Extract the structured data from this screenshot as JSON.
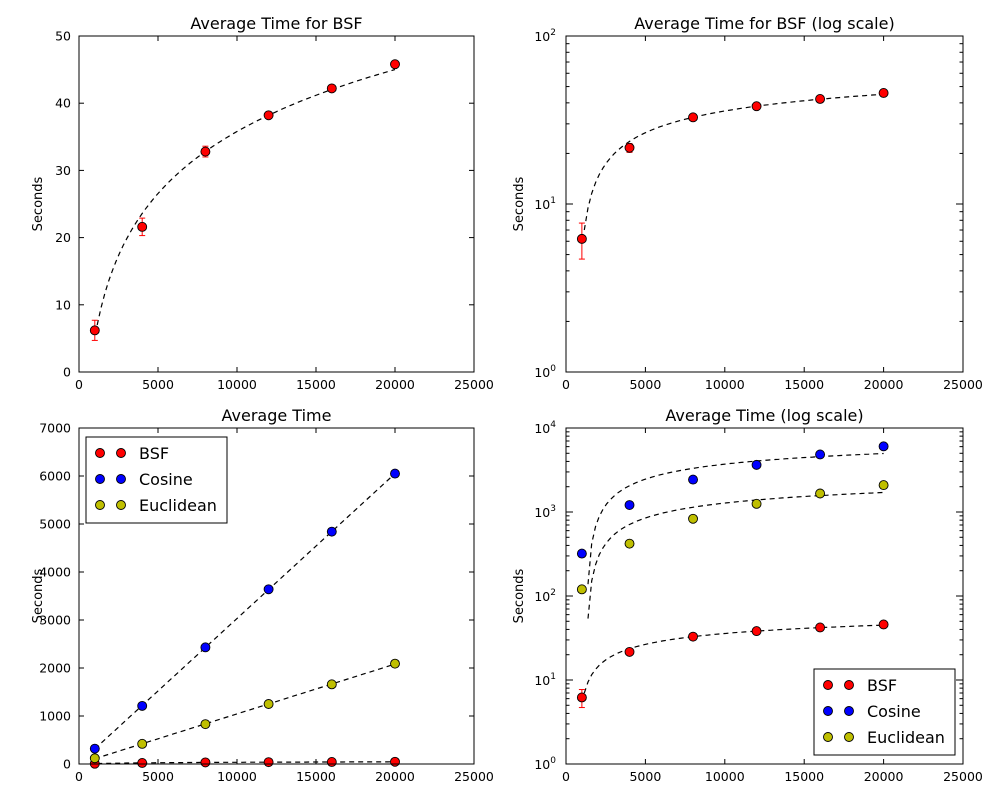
{
  "chart_data": [
    {
      "type": "scatter",
      "title": "Average Time for BSF",
      "xlabel": "",
      "ylabel": "Seconds",
      "xlim": [
        0,
        25000
      ],
      "ylim": [
        0,
        50
      ],
      "yscale": "linear",
      "xticks": [
        "0",
        "5000",
        "10000",
        "15000",
        "20000",
        "25000"
      ],
      "yticks": [
        "0",
        "10",
        "20",
        "30",
        "40",
        "50"
      ],
      "x": [
        1000,
        4000,
        8000,
        12000,
        16000,
        20000
      ],
      "series": [
        {
          "name": "BSF",
          "color": "#ff0000",
          "values": [
            6.2,
            21.6,
            32.8,
            38.2,
            42.2,
            45.8
          ],
          "errors": [
            1.5,
            1.3,
            0.8,
            0.4,
            0.4,
            0.4
          ],
          "fit": "log"
        }
      ],
      "grid": false,
      "legend": "none"
    },
    {
      "type": "scatter",
      "title": "Average Time for BSF (log scale)",
      "xlabel": "",
      "ylabel": "Seconds",
      "xlim": [
        0,
        25000
      ],
      "ylim": [
        1,
        100
      ],
      "yscale": "log",
      "xticks": [
        "0",
        "5000",
        "10000",
        "15000",
        "20000",
        "25000"
      ],
      "x": [
        1000,
        4000,
        8000,
        12000,
        16000,
        20000
      ],
      "series": [
        {
          "name": "BSF",
          "color": "#ff0000",
          "values": [
            6.2,
            21.6,
            32.8,
            38.2,
            42.2,
            45.8
          ],
          "errors": [
            1.5,
            1.3,
            0.8,
            0.4,
            0.4,
            0.4
          ],
          "fit": "log"
        }
      ],
      "grid": false,
      "legend": "none"
    },
    {
      "type": "scatter",
      "title": "Average Time",
      "xlabel": "",
      "ylabel": "Seconds",
      "xlim": [
        0,
        25000
      ],
      "ylim": [
        0,
        7000
      ],
      "yscale": "linear",
      "xticks": [
        "0",
        "5000",
        "10000",
        "15000",
        "20000",
        "25000"
      ],
      "yticks": [
        "0",
        "1000",
        "2000",
        "3000",
        "4000",
        "5000",
        "6000",
        "7000"
      ],
      "x": [
        1000,
        4000,
        8000,
        12000,
        16000,
        20000
      ],
      "series": [
        {
          "name": "BSF",
          "color": "#ff0000",
          "values": [
            6.2,
            21.6,
            32.8,
            38.2,
            42.2,
            45.8
          ],
          "errors": [
            1.5,
            1.3,
            0.8,
            0.4,
            0.4,
            0.4
          ],
          "fit": "log"
        },
        {
          "name": "Cosine",
          "color": "#0000ff",
          "values": [
            320,
            1210,
            2430,
            3640,
            4840,
            6050
          ],
          "fit": "linear"
        },
        {
          "name": "Euclidean",
          "color": "#bfbf00",
          "values": [
            120,
            420,
            830,
            1250,
            1660,
            2090
          ],
          "fit": "linear"
        }
      ],
      "grid": false,
      "legend": "top-left"
    },
    {
      "type": "scatter",
      "title": "Average Time (log scale)",
      "xlabel": "",
      "ylabel": "Seconds",
      "xlim": [
        0,
        25000
      ],
      "ylim": [
        1,
        10000
      ],
      "yscale": "log",
      "xticks": [
        "0",
        "5000",
        "10000",
        "15000",
        "20000",
        "25000"
      ],
      "x": [
        1000,
        4000,
        8000,
        12000,
        16000,
        20000
      ],
      "series": [
        {
          "name": "BSF",
          "color": "#ff0000",
          "values": [
            6.2,
            21.6,
            32.8,
            38.2,
            42.2,
            45.8
          ],
          "errors": [
            1.5,
            1.3,
            0.8,
            0.4,
            0.4,
            0.4
          ],
          "fit": "log"
        },
        {
          "name": "Cosine",
          "color": "#0000ff",
          "values": [
            320,
            1210,
            2430,
            3640,
            4840,
            6050
          ],
          "fit": "log"
        },
        {
          "name": "Euclidean",
          "color": "#bfbf00",
          "values": [
            120,
            420,
            830,
            1250,
            1660,
            2090
          ],
          "fit": "log"
        }
      ],
      "grid": false,
      "legend": "bottom-right"
    }
  ]
}
